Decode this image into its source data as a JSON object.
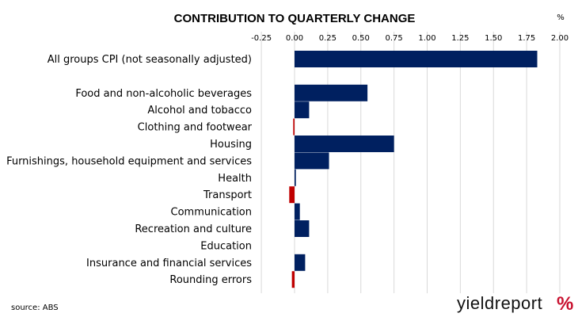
{
  "colors": {
    "positive": "#002060",
    "negative": "#c00000",
    "grid": "#d9d9d9",
    "logo_accent": "#c8102e"
  },
  "chart_data": {
    "type": "bar",
    "orientation": "horizontal",
    "title": "CONTRIBUTION TO QUARTERLY CHANGE",
    "unit_label": "%",
    "xlim": [
      -0.25,
      2.0
    ],
    "xticks": [
      "-0.25",
      "0.00",
      "0.25",
      "0.50",
      "0.75",
      "1.00",
      "1.25",
      "1.50",
      "1.75",
      "2.00"
    ],
    "xtick_values": [
      -0.25,
      0,
      0.25,
      0.5,
      0.75,
      1.0,
      1.25,
      1.5,
      1.75,
      2.0
    ],
    "grid": "vertical",
    "categories": [
      "All groups CPI (not seasonally adjusted)",
      "",
      "Food and non-alcoholic beverages",
      "Alcohol and tobacco",
      "Clothing and footwear",
      "Housing",
      "Furnishings, household equipment and services",
      "Health",
      "Transport",
      "Communication",
      "Recreation and culture",
      "Education",
      "Insurance and financial services",
      "Rounding errors"
    ],
    "values": [
      1.83,
      null,
      0.55,
      0.11,
      -0.01,
      0.75,
      0.26,
      0.01,
      -0.04,
      0.04,
      0.11,
      0.0,
      0.08,
      -0.02
    ]
  },
  "footer": {
    "source": "source: ABS",
    "logo_text": "yieldreport",
    "logo_symbol": "%"
  }
}
